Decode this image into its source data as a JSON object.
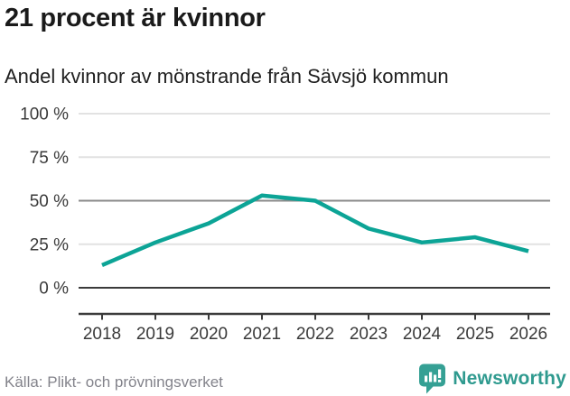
{
  "title": "21 procent är kvinnor",
  "subtitle": "Andel kvinnor av mönstrande från Sävsjö kommun",
  "source": "Källa: Plikt- och prövningsverket",
  "brand": {
    "name": "Newsworthy",
    "color": "#2f9a8f"
  },
  "colors": {
    "line": "#0ca496",
    "grid_light": "#e2e2e2",
    "grid_mid": "#8a8a8a",
    "grid_dark": "#3b3b3b",
    "axis": "#3b3b3b",
    "tick_label": "#3a3a3a"
  },
  "chart_data": {
    "type": "line",
    "title": "21 procent är kvinnor",
    "subtitle": "Andel kvinnor av mönstrande från Sävsjö kommun",
    "categories": [
      "2018",
      "2019",
      "2020",
      "2021",
      "2022",
      "2023",
      "2024",
      "2025",
      "2026"
    ],
    "series": [
      {
        "name": "Andel kvinnor av mönstrande",
        "values": [
          13,
          26,
          37,
          53,
          50,
          34,
          26,
          29,
          21
        ]
      }
    ],
    "unit": "%",
    "ylim": [
      0,
      100
    ],
    "yticks": [
      0,
      25,
      50,
      75,
      100
    ],
    "ytick_suffix": " %",
    "xlabel": "",
    "ylabel": "",
    "grid": "horizontal",
    "legend": "none",
    "source": "Källa: Plikt- och prövningsverket"
  }
}
